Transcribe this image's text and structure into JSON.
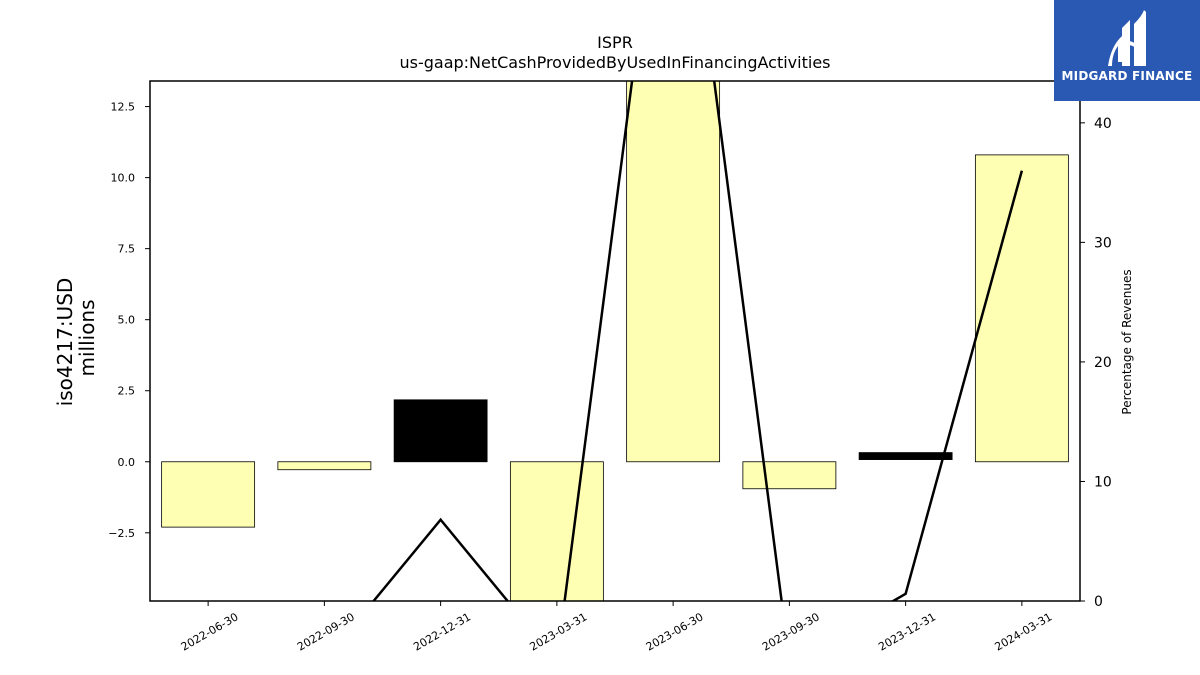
{
  "brand": {
    "name": "MIDGARD FINANCE",
    "color": "#2a59b3"
  },
  "chart_data": {
    "type": "bar",
    "title": "ISPR",
    "subtitle": "us-gaap:NetCashProvidedByUsedInFinancingActivities",
    "ylabel_lines": [
      "iso4217:USD",
      "millions"
    ],
    "y2label": "Percentage of Revenues",
    "categories": [
      "2022-06-30",
      "2022-09-30",
      "2022-12-31",
      "2023-03-31",
      "2023-06-30",
      "2023-09-30",
      "2023-12-31",
      "2024-03-31"
    ],
    "ylim": [
      -4.9,
      13.4
    ],
    "y_ticks": [
      -2.5,
      0.0,
      2.5,
      5.0,
      7.5,
      10.0,
      12.5
    ],
    "y_tick_labels": [
      "−2.5",
      "0.0",
      "2.5",
      "5.0",
      "7.5",
      "10.0",
      "12.5"
    ],
    "y2lim": [
      0,
      43.5
    ],
    "y2_ticks": [
      0,
      10,
      20,
      30,
      40
    ],
    "series": [
      {
        "kind": "bar",
        "values": [
          -2.3,
          -0.28,
          2.18,
          -6.0,
          16.0,
          -0.95,
          0.2,
          10.8
        ],
        "colors": [
          "#ffffb3",
          "#ffffb3",
          "#000000",
          "#ffffb3",
          "#ffffb3",
          "#ffffb3",
          "#000000",
          "#ffffb3"
        ]
      },
      {
        "kind": "line",
        "axis": "right",
        "values": [
          -5,
          -5,
          6.8,
          -5,
          70,
          -5,
          0.6,
          36
        ],
        "color": "#000000"
      }
    ],
    "grid": false
  }
}
